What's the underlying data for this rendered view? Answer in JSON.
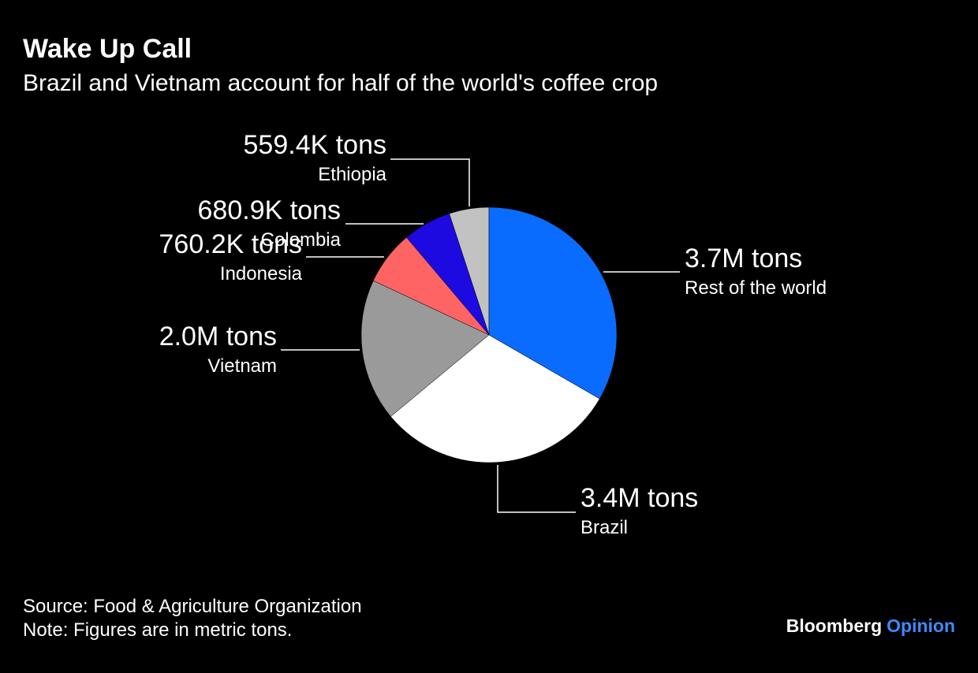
{
  "chart_data": {
    "type": "pie",
    "title": "Wake Up Call",
    "subtitle": "Brazil and Vietnam account for half of the world's coffee crop",
    "categories": [
      "Rest of the world",
      "Brazil",
      "Vietnam",
      "Indonesia",
      "Colombia",
      "Ethiopia"
    ],
    "values": [
      3700000,
      3400000,
      2000000,
      760200,
      680900,
      559400
    ],
    "value_labels": [
      "3.7M tons",
      "3.4M tons",
      "2.0M tons",
      "760.2K tons",
      "680.9K tons",
      "559.4K tons"
    ],
    "colors": [
      "#0a6cff",
      "#ffffff",
      "#9a9a9a",
      "#ff6464",
      "#1c0ae0",
      "#c2c2c2"
    ],
    "source": "Source: Food & Agriculture Organization",
    "note": "Note: Figures are in metric tons.",
    "brand": [
      "Bloomberg",
      "Opinion"
    ]
  }
}
